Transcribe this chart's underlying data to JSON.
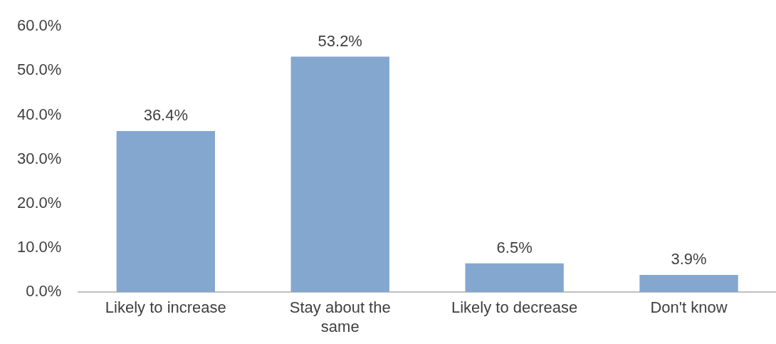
{
  "chart_data": {
    "type": "bar",
    "categories": [
      "Likely to increase",
      "Stay about the same",
      "Likely to decrease",
      "Don't know"
    ],
    "values": [
      36.4,
      53.2,
      6.5,
      3.9
    ],
    "value_labels": [
      "36.4%",
      "53.2%",
      "6.5%",
      "3.9%"
    ],
    "color": "#84a7cf",
    "ylim": [
      0,
      60
    ],
    "yticks": [
      {
        "value": 0,
        "label": "0.0%"
      },
      {
        "value": 10,
        "label": "10.0%"
      },
      {
        "value": 20,
        "label": "20.0%"
      },
      {
        "value": 30,
        "label": "30.0%"
      },
      {
        "value": 40,
        "label": "40.0%"
      },
      {
        "value": 50,
        "label": "50.0%"
      },
      {
        "value": 60,
        "label": "60.0%"
      }
    ],
    "grid": false,
    "legend": false
  }
}
